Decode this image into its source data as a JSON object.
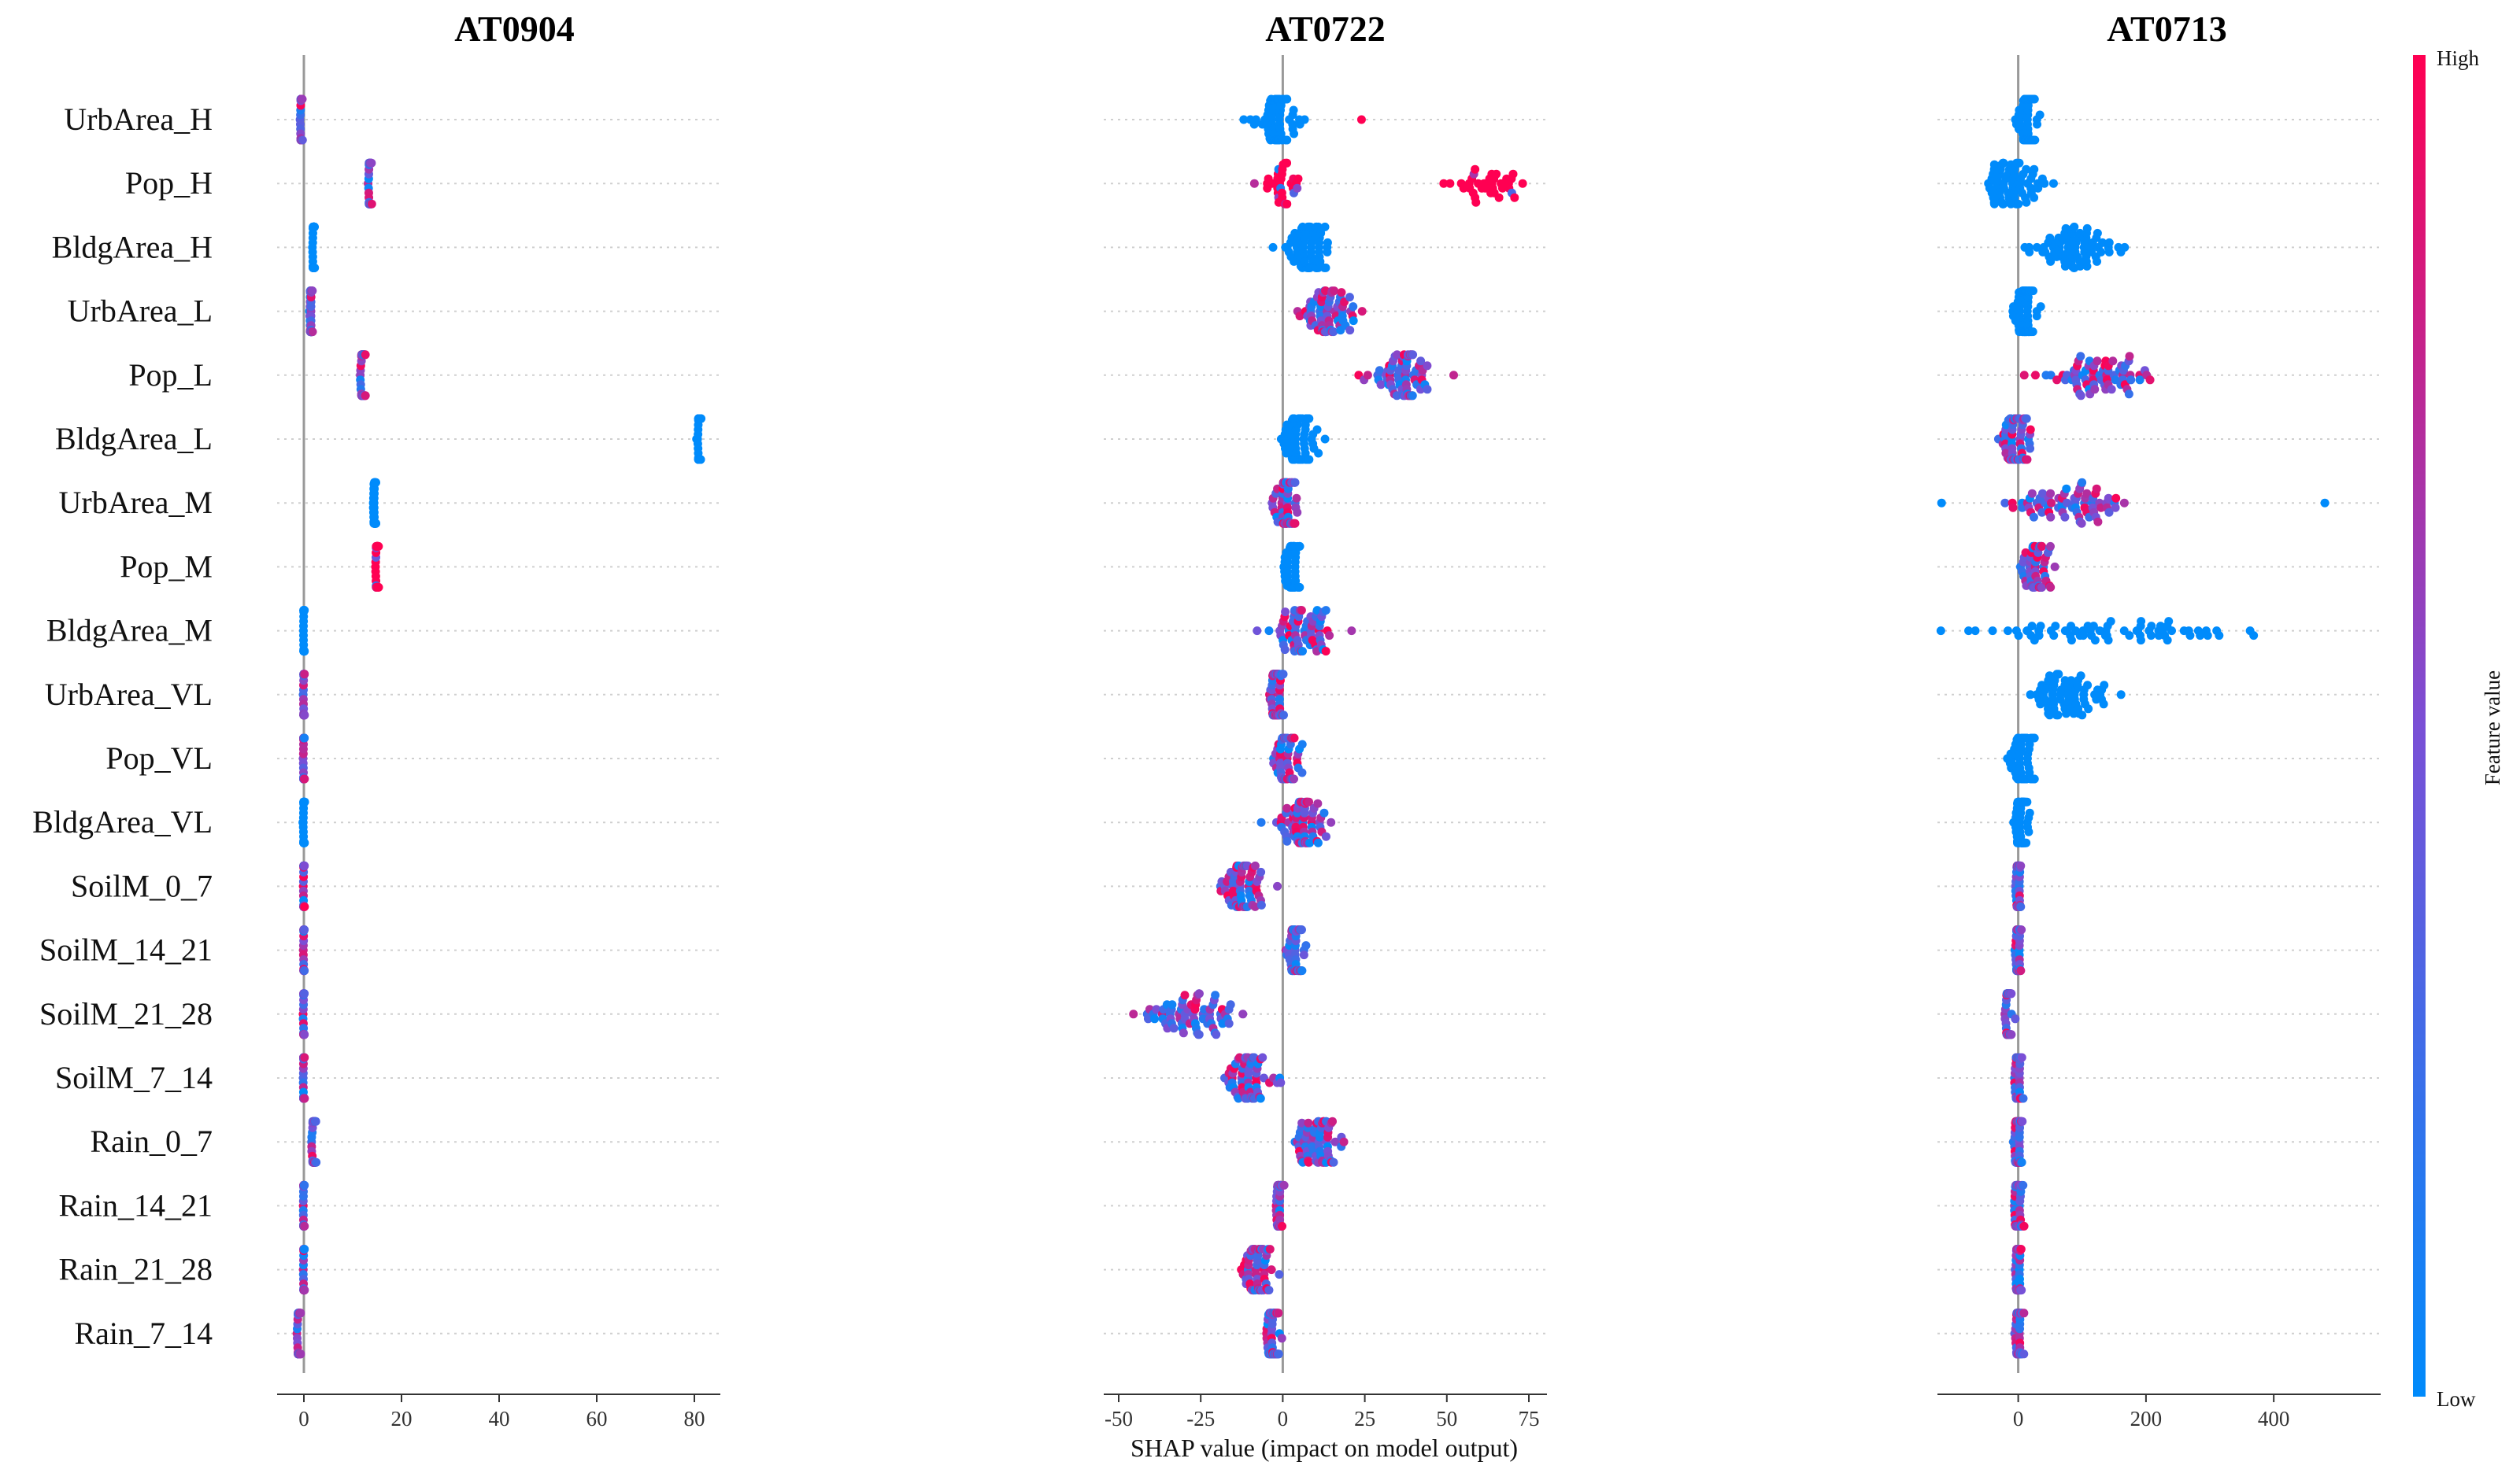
{
  "chart_data": {
    "type": "scatter",
    "subtype": "shap-beeswarm",
    "features": [
      "UrbArea_H",
      "Pop_H",
      "BldgArea_H",
      "UrbArea_L",
      "Pop_L",
      "BldgArea_L",
      "UrbArea_M",
      "Pop_M",
      "BldgArea_M",
      "UrbArea_VL",
      "Pop_VL",
      "BldgArea_VL",
      "SoilM_0_7",
      "SoilM_14_21",
      "SoilM_21_28",
      "SoilM_7_14",
      "Rain_0_7",
      "Rain_14_21",
      "Rain_21_28",
      "Rain_7_14"
    ],
    "xlabel": "SHAP value (impact on model output)",
    "colorbar": {
      "label": "Feature value",
      "high": "High",
      "low": "Low",
      "high_color": "#ff0052",
      "mid_color": "#7a4fd6",
      "low_color": "#008bfb"
    },
    "panels": [
      {
        "title": "AT0904",
        "xlim": [
          -5,
          85
        ],
        "xticks": [
          0,
          20,
          40,
          60,
          80
        ],
        "clusters": [
          {
            "center": -0.5,
            "spread": 0.2,
            "color": "mix"
          },
          {
            "center": 13.5,
            "spread": 0.3,
            "color": "mix"
          },
          {
            "center": 2,
            "spread": 0.2,
            "color": "low"
          },
          {
            "center": 1.5,
            "spread": 0.3,
            "color": "mix"
          },
          {
            "center": 12,
            "spread": 0.4,
            "color": "mix"
          },
          {
            "center": 81,
            "spread": 0.3,
            "color": "low"
          },
          {
            "center": 14.5,
            "spread": 0.2,
            "color": "low"
          },
          {
            "center": 15,
            "spread": 0.3,
            "color": "high"
          },
          {
            "center": 0,
            "spread": 0.1,
            "color": "low"
          },
          {
            "center": 0,
            "spread": 0.1,
            "color": "mix"
          },
          {
            "center": 0,
            "spread": 0.1,
            "color": "mix"
          },
          {
            "center": 0,
            "spread": 0.1,
            "color": "low"
          },
          {
            "center": 0,
            "spread": 0.1,
            "color": "mix"
          },
          {
            "center": 0,
            "spread": 0.1,
            "color": "mix"
          },
          {
            "center": 0,
            "spread": 0.1,
            "color": "mix"
          },
          {
            "center": 0,
            "spread": 0.1,
            "color": "mix"
          },
          {
            "center": 2,
            "spread": 0.4,
            "color": "mix"
          },
          {
            "center": 0,
            "spread": 0.1,
            "color": "mix"
          },
          {
            "center": 0,
            "spread": 0.1,
            "color": "mix"
          },
          {
            "center": -1,
            "spread": 0.3,
            "color": "mix"
          }
        ]
      },
      {
        "title": "AT0722",
        "xlim": [
          -56,
          81
        ],
        "xticks": [
          -50,
          -25,
          0,
          25,
          50,
          75
        ],
        "clusters": [
          {
            "center": -2,
            "spread": 6,
            "color": "low",
            "outliers": [
              24
            ]
          },
          {
            "center": 62,
            "spread": 9,
            "color": "high",
            "extra_center": 0,
            "extra_spread": 5
          },
          {
            "center": 8,
            "spread": 6,
            "color": "low"
          },
          {
            "center": 14,
            "spread": 8,
            "color": "mix"
          },
          {
            "center": 36,
            "spread": 9,
            "color": "mix"
          },
          {
            "center": 6,
            "spread": 5,
            "color": "low"
          },
          {
            "center": 1,
            "spread": 3,
            "color": "mix"
          },
          {
            "center": 3,
            "spread": 2,
            "color": "low"
          },
          {
            "center": 6,
            "spread": 8,
            "color": "mix"
          },
          {
            "center": -2,
            "spread": 2,
            "color": "mix"
          },
          {
            "center": 1,
            "spread": 4,
            "color": "mix"
          },
          {
            "center": 5,
            "spread": 7,
            "color": "mix"
          },
          {
            "center": -12,
            "spread": 6,
            "color": "mix"
          },
          {
            "center": 4,
            "spread": 3,
            "color": "mix"
          },
          {
            "center": -28,
            "spread": 12,
            "color": "mix"
          },
          {
            "center": -10,
            "spread": 6,
            "color": "mix"
          },
          {
            "center": 10,
            "spread": 6,
            "color": "mix"
          },
          {
            "center": -1,
            "spread": 1,
            "color": "mix"
          },
          {
            "center": -8,
            "spread": 5,
            "color": "mix"
          },
          {
            "center": -3,
            "spread": 2,
            "color": "mix"
          }
        ]
      },
      {
        "title": "AT0713",
        "xlim": [
          -140,
          560
        ],
        "xticks": [
          0,
          200,
          400
        ],
        "clusters": [
          {
            "center": 15,
            "spread": 15,
            "color": "low"
          },
          {
            "center": -5,
            "spread": 45,
            "color": "low"
          },
          {
            "center": 80,
            "spread": 60,
            "color": "low"
          },
          {
            "center": 10,
            "spread": 12,
            "color": "low"
          },
          {
            "center": 120,
            "spread": 80,
            "color": "mix"
          },
          {
            "center": 0,
            "spread": 20,
            "color": "mix"
          },
          {
            "center": 80,
            "spread": 100,
            "color": "mix",
            "outliers": [
              -120,
              480
            ]
          },
          {
            "center": 30,
            "spread": 20,
            "color": "mix"
          },
          {
            "center": 150,
            "spread": 200,
            "color": "low"
          },
          {
            "center": 70,
            "spread": 50,
            "color": "low"
          },
          {
            "center": 5,
            "spread": 20,
            "color": "low"
          },
          {
            "center": 5,
            "spread": 10,
            "color": "low"
          },
          {
            "center": 0,
            "spread": 4,
            "color": "mix"
          },
          {
            "center": 0,
            "spread": 4,
            "color": "mix"
          },
          {
            "center": -15,
            "spread": 5,
            "color": "mix"
          },
          {
            "center": 0,
            "spread": 6,
            "color": "mix"
          },
          {
            "center": 0,
            "spread": 6,
            "color": "mix"
          },
          {
            "center": 0,
            "spread": 6,
            "color": "mix"
          },
          {
            "center": 0,
            "spread": 4,
            "color": "mix"
          },
          {
            "center": 0,
            "spread": 6,
            "color": "mix"
          }
        ]
      }
    ]
  }
}
